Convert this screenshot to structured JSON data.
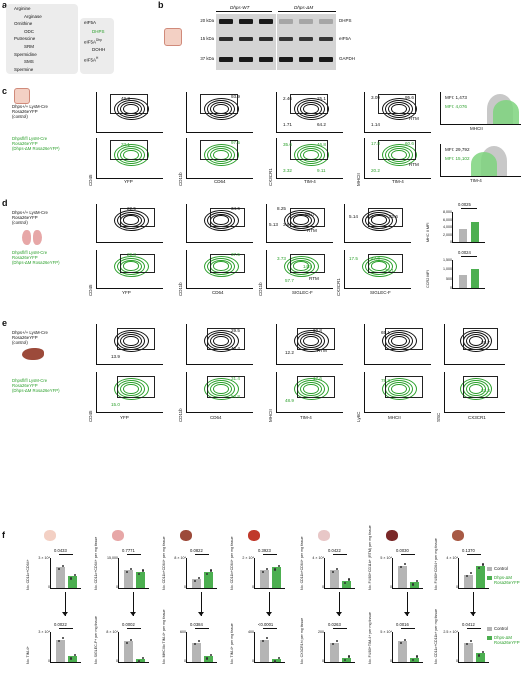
{
  "panel_a": {
    "letter": "a",
    "pathway": [
      "Arginine",
      "Arginase",
      "Ornithine",
      "ODC",
      "Putrescine",
      "SRM",
      "Spermidine",
      "SMS",
      "Spermine"
    ],
    "eif5a": [
      "eIF5A",
      "DHPS",
      "eIF5A",
      "DOHH",
      "eIF5A"
    ],
    "eif5a_sup": [
      "",
      "",
      "Dhp",
      "",
      "H"
    ]
  },
  "panel_b": {
    "letter": "b",
    "groups": [
      "Dhps-WT",
      "Dhps-ΔM"
    ],
    "markers": [
      "20 kDa",
      "15 kDa",
      "37 kDa"
    ],
    "bands": [
      "DHPS",
      "eIF5A",
      "GAPDH"
    ]
  },
  "panel_c": {
    "letter": "c",
    "control_label": [
      "Dhps+/+ LysM-Cre",
      "Rosa26eYFP",
      "(control)"
    ],
    "ko_label": [
      "Dhpsfl/fl LysM-Cre",
      "Rosa26eYFP",
      "(Dhps-ΔM Rosa26eYFP)"
    ],
    "axes": [
      "CD45",
      "YFP",
      "CD11b",
      "CD64",
      "CX3CR1",
      "TIM-4",
      "MHCII",
      "TIM-4"
    ],
    "control_values": [
      "49.3",
      "93.9",
      "2.46",
      "25.1",
      "1.71",
      "64.2",
      "3.09",
      "95.6",
      "1.14"
    ],
    "ko_values": [
      "33.1",
      "97.5",
      "35.6",
      "46.8",
      "3.32",
      "9.11",
      "17.8",
      "60.6",
      "20.2"
    ],
    "gate_labels": [
      "RTM",
      "RTM"
    ],
    "mfi": [
      "MFI: 1,473",
      "MFI: 4,076",
      "MFI: 29,792",
      "MFI: 15,102"
    ],
    "hist_axes": [
      "MHCII",
      "TIM-4"
    ]
  },
  "panel_d": {
    "letter": "d",
    "axes": [
      "CD45",
      "YFP",
      "CD11b",
      "CD64",
      "CD11b",
      "SIGLEC-F",
      "CX3CR1",
      "SIGLEC-F"
    ],
    "control_values": [
      "22.5",
      "34.6",
      "8.25",
      "80.0",
      "5.13",
      "3.8",
      "5.14",
      "2.4",
      "82.6"
    ],
    "ko_values": [
      "29.8",
      "37.5",
      "3.73",
      "14.5",
      "57.7",
      "17.5",
      "47.0",
      "75.1"
    ],
    "gate_labels": [
      "RTM",
      "RTM"
    ],
    "stat1": {
      "p": "0.0025",
      "ylabel": "MHC II MFI",
      "ticks": [
        "8,000",
        "6,000",
        "4,000",
        "2,000",
        "0"
      ]
    },
    "stat2": {
      "p": "0.0024",
      "ylabel": "CCR2 MFI",
      "ticks": [
        "1,500",
        "1,000",
        "500",
        "0"
      ]
    }
  },
  "panel_e": {
    "letter": "e",
    "axes": [
      "CD45",
      "YFP",
      "CD11b",
      "CD64",
      "MHCII",
      "TIM-4",
      "Ly6C",
      "MHCII",
      "SSC",
      "CX3CR1"
    ],
    "control_values": [
      "13.9",
      "29.5",
      "48.4",
      "60.8",
      "12.2",
      "65.1",
      "25.7"
    ],
    "ko_values": [
      "15.0",
      "31.4",
      "54.8",
      "17.6",
      "48.9",
      "78.3",
      "33.3"
    ],
    "gate_labels": [
      "RTM"
    ]
  },
  "panel_f": {
    "letter": "f",
    "legend": [
      {
        "label": "Control"
      },
      {
        "label": "Dhps-ΔM Rosa26eYFP"
      }
    ],
    "top_row": [
      {
        "p": "0.0433",
        "ylabel": "No. CD11c+CD64+",
        "top": "3 × 10⁴"
      },
      {
        "p": "0.7771",
        "ylabel": "No. CD11c+CD64+ per mg tissue",
        "top": "15,000"
      },
      {
        "p": "0.0822",
        "ylabel": "No. CD11b+CD64+ per mg tissue",
        "top": "8 × 10⁴"
      },
      {
        "p": "0.3923",
        "ylabel": "No. CD11b+CD64+ per mg tissue",
        "top": "2 × 10⁴"
      },
      {
        "p": "0.0422",
        "ylabel": "No. CD11b+CD64+ per mg tissue",
        "top": "4 × 10⁴"
      },
      {
        "p": "0.0030",
        "ylabel": "No. F4/80+CD11b+ (RTM) per mg tissue",
        "top": "5 × 10⁴"
      },
      {
        "p": "0.1370",
        "ylabel": "No. F4/80+CD64+ per mg tissue",
        "top": "4 × 10⁴"
      }
    ],
    "bottom_row": [
      {
        "p": "0.0022",
        "ylabel": "No. TIM-4+",
        "top": "3 × 10⁴"
      },
      {
        "p": "0.0002",
        "ylabel": "No. SIGLEC-F+ per mg tissue",
        "top": "8 × 10⁴"
      },
      {
        "p": "0.0384",
        "ylabel": "No. MHCIIlo TIM-4+ per mg tissue",
        "top": "600"
      },
      {
        "p": "<0.0001",
        "ylabel": "No. TIM-4+ per mg tissue",
        "top": "400"
      },
      {
        "p": "0.0263",
        "ylabel": "No. CX3CR1hi per mg tissue",
        "top": "200"
      },
      {
        "p": "0.0016",
        "ylabel": "No. F4/80+TIM-4+ per mg tissue",
        "top": "5 × 10⁴"
      },
      {
        "p": "0.0412",
        "ylabel": "No. CD11c+CD11b+ per mg tissue",
        "top": "2.5 × 10⁴"
      }
    ]
  },
  "colors": {
    "control_bar": "#b5b5b5",
    "ko_bar": "#4caf50",
    "green": "#2ca02c"
  }
}
